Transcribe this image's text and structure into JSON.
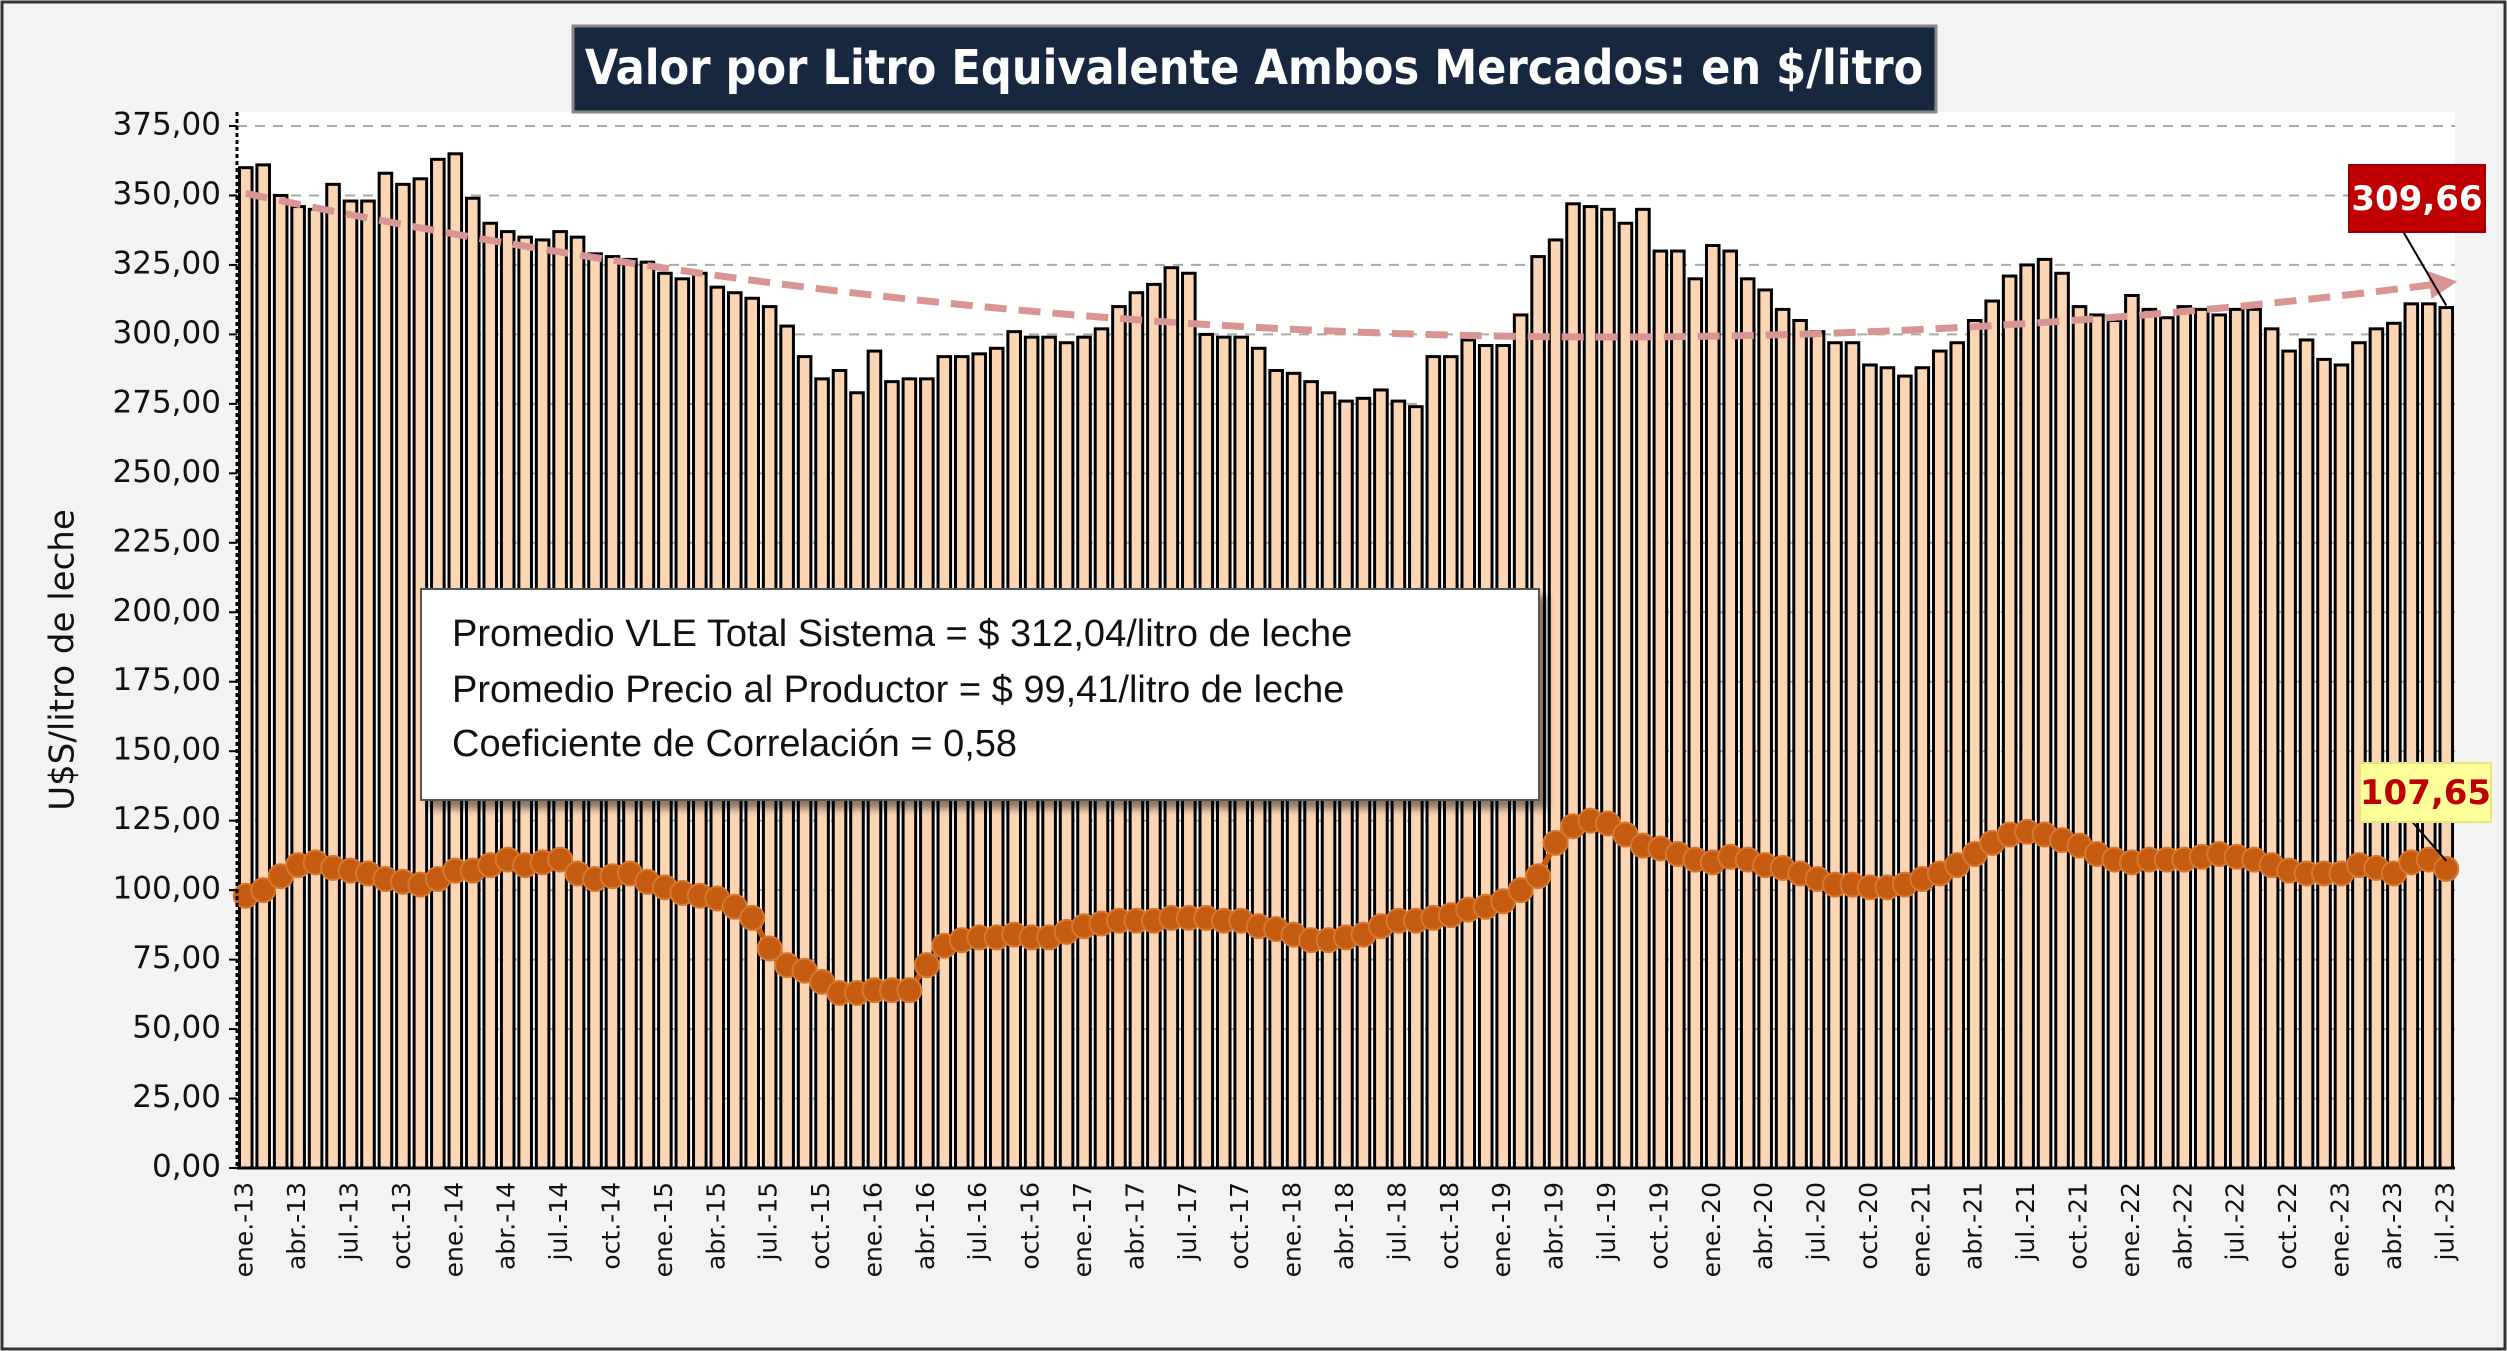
{
  "chart_data": {
    "type": "bar_line",
    "title": "Valor por Litro Equivalente Ambos Mercados: en $/litro",
    "y_label": "U$S/litro de leche",
    "notes": [
      "Promedio VLE Total Sistema = $ 312,04/litro de leche",
      "Promedio Precio al Productor = $ 99,41/litro de leche",
      "Coeficiente de Correlación = 0,58"
    ],
    "categories": [
      "ene.-13",
      null,
      null,
      "abr.-13",
      null,
      null,
      "jul.-13",
      null,
      null,
      "oct.-13",
      null,
      null,
      "ene.-14",
      null,
      null,
      "abr.-14",
      null,
      null,
      "jul.-14",
      null,
      null,
      "oct.-14",
      null,
      null,
      "ene.-15",
      null,
      null,
      "abr.-15",
      null,
      null,
      "jul.-15",
      null,
      null,
      "oct.-15",
      null,
      null,
      "ene.-16",
      null,
      null,
      "abr.-16",
      null,
      null,
      "jul.-16",
      null,
      null,
      "oct.-16",
      null,
      null,
      "ene.-17",
      null,
      null,
      "abr.-17",
      null,
      null,
      "jul.-17",
      null,
      null,
      "oct.-17",
      null,
      null,
      "ene.-18",
      null,
      null,
      "abr.-18",
      null,
      null,
      "jul.-18",
      null,
      null,
      "oct.-18",
      null,
      null,
      "ene.-19",
      null,
      null,
      "abr.-19",
      null,
      null,
      "jul.-19",
      null,
      null,
      "oct.-19",
      null,
      null,
      "ene.-20",
      null,
      null,
      "abr.-20",
      null,
      null,
      "jul.-20",
      null,
      null,
      "oct.-20",
      null,
      null,
      "ene.-21",
      null,
      null,
      "abr.-21",
      null,
      null,
      "jul.-21",
      null,
      null,
      "oct.-21",
      null,
      null,
      "ene.-22",
      null,
      null,
      "abr.-22",
      null,
      null,
      "jul.-22",
      null,
      null,
      "oct.-22",
      null,
      null,
      "ene.-23",
      null,
      null,
      "abr.-23",
      null,
      null,
      "jul.-23"
    ],
    "series": [
      {
        "kind": "bar",
        "color": "#fcd5b4",
        "values": [
          360,
          361,
          350,
          346,
          345,
          354,
          348,
          348,
          358,
          354,
          356,
          363,
          365,
          349,
          340,
          337,
          335,
          334,
          337,
          335,
          329,
          328,
          327,
          326,
          322,
          320,
          322,
          317,
          315,
          313,
          310,
          303,
          292,
          284,
          287,
          279,
          294,
          283,
          284,
          284,
          292,
          292,
          293,
          295,
          301,
          299,
          299,
          297,
          299,
          302,
          310,
          315,
          318,
          324,
          322,
          300,
          299,
          299,
          295,
          287,
          286,
          283,
          279,
          276,
          277,
          280,
          276,
          274,
          292,
          292,
          298,
          296,
          296,
          307,
          328,
          334,
          347,
          346,
          345,
          340,
          345,
          330,
          330,
          320,
          332,
          330,
          320,
          316,
          309,
          305,
          301,
          297,
          297,
          289,
          288,
          285,
          288,
          294,
          297,
          305,
          312,
          321,
          325,
          327,
          322,
          310,
          307,
          305,
          314,
          309,
          306,
          310,
          309,
          307,
          309,
          309,
          302,
          294,
          298,
          291,
          289,
          297,
          302,
          304,
          311,
          311,
          309.66
        ],
        "value_labels": [
          null,
          null,
          null,
          null,
          null,
          null,
          null,
          null,
          null,
          null,
          null,
          null,
          null,
          null,
          null,
          null,
          null,
          null,
          null,
          null,
          null,
          null,
          null,
          null,
          null,
          null,
          null,
          null,
          null,
          null,
          null,
          null,
          null,
          null,
          null,
          null,
          null,
          null,
          null,
          null,
          null,
          null,
          null,
          null,
          null,
          null,
          null,
          null,
          null,
          null,
          null,
          null,
          null,
          null,
          null,
          null,
          null,
          null,
          null,
          null,
          null,
          null,
          null,
          null,
          null,
          null,
          null,
          null,
          null,
          null,
          null,
          null,
          null,
          null,
          null,
          null,
          null,
          null,
          null,
          null,
          null,
          null,
          null,
          null,
          null,
          null,
          null,
          null,
          null,
          null,
          null,
          null,
          null,
          null,
          null,
          null,
          null,
          null,
          null,
          null,
          null,
          null,
          null,
          null,
          null,
          null,
          null,
          null,
          null,
          null,
          null,
          null,
          null,
          null,
          null,
          null,
          null,
          null,
          null,
          null,
          null,
          null,
          null,
          null,
          null,
          null,
          "309,66"
        ]
      },
      {
        "kind": "line",
        "color": "#c55a11",
        "values": [
          98,
          100,
          105,
          109,
          110,
          108,
          107,
          106,
          104,
          103,
          102,
          104,
          107,
          107,
          109,
          111,
          109,
          110,
          111,
          106,
          104,
          105,
          106,
          103,
          101,
          99,
          98,
          97,
          94,
          90,
          79,
          73,
          71,
          67,
          63,
          63,
          64,
          64,
          64,
          73,
          80,
          82,
          83,
          83,
          84,
          83,
          83,
          85,
          87,
          88,
          89,
          89,
          89,
          90,
          90,
          90,
          89,
          89,
          87,
          86,
          84,
          82,
          82,
          83,
          84,
          87,
          89,
          89,
          90,
          91,
          93,
          94,
          96,
          100,
          105,
          117,
          123,
          125,
          124,
          120,
          116,
          115,
          113,
          111,
          110,
          112,
          111,
          109,
          108,
          106,
          104,
          102,
          102,
          101,
          101,
          102,
          104,
          106,
          109,
          113,
          117,
          120,
          121,
          120,
          118,
          116,
          113,
          111,
          110,
          111,
          111,
          111,
          112,
          113,
          112,
          111,
          109,
          107,
          106,
          106,
          106,
          109,
          108,
          106,
          110,
          111,
          107.65
        ],
        "value_labels": [
          null,
          null,
          null,
          null,
          null,
          null,
          null,
          null,
          null,
          null,
          null,
          null,
          null,
          null,
          null,
          null,
          null,
          null,
          null,
          null,
          null,
          null,
          null,
          null,
          null,
          null,
          null,
          null,
          null,
          null,
          null,
          null,
          null,
          null,
          null,
          null,
          null,
          null,
          null,
          null,
          null,
          null,
          null,
          null,
          null,
          null,
          null,
          null,
          null,
          null,
          null,
          null,
          null,
          null,
          null,
          null,
          null,
          null,
          null,
          null,
          null,
          null,
          null,
          null,
          null,
          null,
          null,
          null,
          null,
          null,
          null,
          null,
          null,
          null,
          null,
          null,
          null,
          null,
          null,
          null,
          null,
          null,
          null,
          null,
          null,
          null,
          null,
          null,
          null,
          null,
          null,
          null,
          null,
          null,
          null,
          null,
          null,
          null,
          null,
          null,
          null,
          null,
          null,
          null,
          null,
          null,
          null,
          null,
          null,
          null,
          null,
          null,
          null,
          null,
          null,
          null,
          null,
          null,
          null,
          null,
          null,
          null,
          null,
          null,
          null,
          null,
          "107,65"
        ]
      }
    ],
    "trendline": "polynomial",
    "trend_color": "#d99594",
    "ylim": [
      0,
      375
    ],
    "yticks": [
      {
        "value": 0,
        "label": "0,00"
      },
      {
        "value": 25,
        "label": "25,00"
      },
      {
        "value": 50,
        "label": "50,00"
      },
      {
        "value": 75,
        "label": "75,00"
      },
      {
        "value": 100,
        "label": "100,00"
      },
      {
        "value": 125,
        "label": "125,00"
      },
      {
        "value": 150,
        "label": "150,00"
      },
      {
        "value": 175,
        "label": "175,00"
      },
      {
        "value": 200,
        "label": "200,00"
      },
      {
        "value": 225,
        "label": "225,00"
      },
      {
        "value": 250,
        "label": "250,00"
      },
      {
        "value": 275,
        "label": "275,00"
      },
      {
        "value": 300,
        "label": "300,00"
      },
      {
        "value": 325,
        "label": "325,00"
      },
      {
        "value": 350,
        "label": "350,00"
      },
      {
        "value": 375,
        "label": "375,00"
      }
    ],
    "grid": true
  }
}
